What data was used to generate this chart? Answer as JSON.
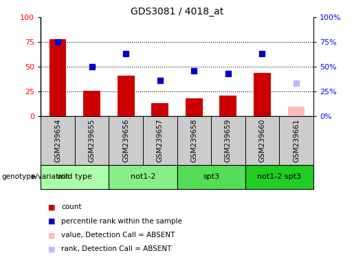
{
  "title": "GDS3081 / 4018_at",
  "samples": [
    "GSM239654",
    "GSM239655",
    "GSM239656",
    "GSM239657",
    "GSM239658",
    "GSM239659",
    "GSM239660",
    "GSM239661"
  ],
  "counts": [
    78,
    26,
    41,
    13,
    18,
    21,
    44,
    null
  ],
  "ranks": [
    75,
    50,
    63,
    36,
    46,
    43,
    63,
    null
  ],
  "absent_value": [
    null,
    null,
    null,
    null,
    null,
    null,
    null,
    10
  ],
  "absent_rank": [
    null,
    null,
    null,
    null,
    null,
    null,
    null,
    33
  ],
  "groups": [
    {
      "label": "wild type",
      "start": 0,
      "end": 2
    },
    {
      "label": "not1-2",
      "start": 2,
      "end": 4
    },
    {
      "label": "spt3",
      "start": 4,
      "end": 6
    },
    {
      "label": "not1-2 spt3",
      "start": 6,
      "end": 8
    }
  ],
  "group_colors": [
    "#aaffaa",
    "#88ee88",
    "#55dd55",
    "#22cc22"
  ],
  "bar_color": "#cc0000",
  "rank_color": "#0000cc",
  "absent_bar_color": "#ffbbbb",
  "absent_rank_color": "#bbbbff",
  "ylim": [
    0,
    100
  ],
  "yticks": [
    0,
    25,
    50,
    75,
    100
  ],
  "tick_bg": "#cccccc",
  "legend_items": [
    {
      "color": "#cc0000",
      "label": "count"
    },
    {
      "color": "#0000cc",
      "label": "percentile rank within the sample"
    },
    {
      "color": "#ffbbbb",
      "label": "value, Detection Call = ABSENT"
    },
    {
      "color": "#bbbbff",
      "label": "rank, Detection Call = ABSENT"
    }
  ]
}
